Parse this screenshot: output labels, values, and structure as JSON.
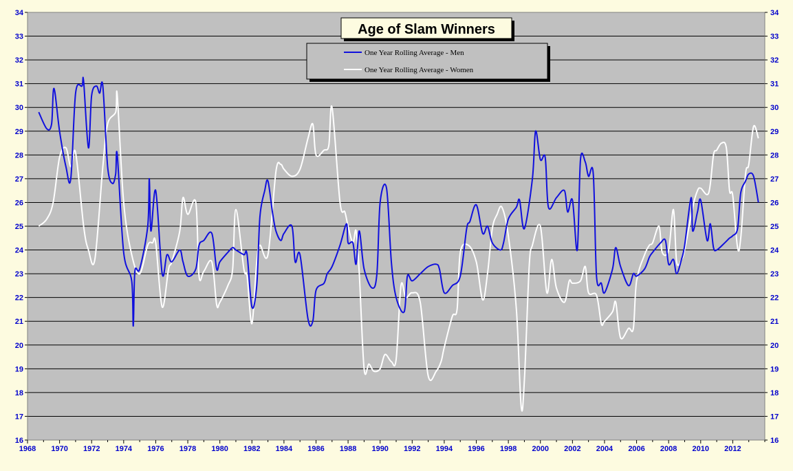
{
  "chart_data": {
    "type": "line",
    "title": "Age of Slam Winners",
    "xlim": [
      1968,
      2014
    ],
    "ylim": [
      16,
      34
    ],
    "x_ticks": [
      1968,
      1970,
      1972,
      1974,
      1976,
      1978,
      1980,
      1982,
      1984,
      1986,
      1988,
      1990,
      1992,
      1994,
      1996,
      1998,
      2000,
      2002,
      2004,
      2006,
      2008,
      2010,
      2012
    ],
    "y_ticks": [
      16,
      17,
      18,
      19,
      20,
      21,
      22,
      23,
      24,
      25,
      26,
      27,
      28,
      29,
      30,
      31,
      32,
      33,
      34
    ],
    "grid": "horizontal",
    "legend_position": "top-center",
    "colors": {
      "background": "#fdfbe0",
      "plot_area": "#c0c0c0",
      "axis_text": "#0000cc",
      "men_line": "#1010dd",
      "women_line": "#ffffff"
    },
    "series": [
      {
        "name": "One Year Rolling Average - Men",
        "x": [
          1968.7,
          1969.2,
          1969.5,
          1969.65,
          1970.0,
          1970.4,
          1970.7,
          1971.0,
          1971.4,
          1971.5,
          1971.8,
          1972.0,
          1972.3,
          1972.5,
          1972.7,
          1973.0,
          1973.3,
          1973.5,
          1973.6,
          1974.0,
          1974.5,
          1974.6,
          1974.7,
          1975.0,
          1975.5,
          1975.6,
          1975.7,
          1976.0,
          1976.4,
          1976.7,
          1977.0,
          1977.5,
          1977.7,
          1978.0,
          1978.5,
          1978.7,
          1979.0,
          1979.5,
          1979.8,
          1980.0,
          1980.5,
          1980.8,
          1981.0,
          1981.5,
          1981.7,
          1982.0,
          1982.3,
          1982.5,
          1982.8,
          1983.0,
          1983.3,
          1983.5,
          1983.8,
          1984.0,
          1984.5,
          1984.7,
          1985.0,
          1985.5,
          1985.8,
          1986.0,
          1986.5,
          1986.7,
          1987.0,
          1987.5,
          1987.9,
          1988.0,
          1988.3,
          1988.5,
          1988.7,
          1989.0,
          1989.5,
          1989.8,
          1990.0,
          1990.4,
          1990.7,
          1991.0,
          1991.5,
          1991.7,
          1992.0,
          1992.5,
          1993.0,
          1993.5,
          1993.7,
          1994.0,
          1994.5,
          1995.0,
          1995.4,
          1995.6,
          1996.0,
          1996.4,
          1996.7,
          1997.0,
          1997.5,
          1997.7,
          1998.0,
          1998.5,
          1998.7,
          1999.0,
          1999.5,
          1999.7,
          2000.0,
          2000.3,
          2000.5,
          2001.0,
          2001.5,
          2001.7,
          2002.0,
          2002.3,
          2002.5,
          2002.8,
          2003.0,
          2003.3,
          2003.5,
          2003.8,
          2004.0,
          2004.5,
          2004.7,
          2005.0,
          2005.5,
          2005.8,
          2006.0,
          2006.5,
          2006.8,
          2007.0,
          2007.5,
          2007.8,
          2008.0,
          2008.3,
          2008.5,
          2008.8,
          2009.0,
          2009.4,
          2009.5,
          2009.8,
          2010.0,
          2010.4,
          2010.6,
          2010.8,
          2011.0,
          2011.5,
          2011.8,
          2012.0,
          2012.3,
          2012.5,
          2012.8,
          2013.0,
          2013.3,
          2013.6
        ],
        "y": [
          29.8,
          29.1,
          29.3,
          30.8,
          29.0,
          27.5,
          27.0,
          30.6,
          30.9,
          31.1,
          28.3,
          30.5,
          30.9,
          30.6,
          30.9,
          27.5,
          26.8,
          27.2,
          28.0,
          23.9,
          22.7,
          20.8,
          23.1,
          23.2,
          25.0,
          27.0,
          24.8,
          26.5,
          23.0,
          23.8,
          23.5,
          24.0,
          23.5,
          22.9,
          23.2,
          24.2,
          24.4,
          24.7,
          23.2,
          23.5,
          23.9,
          24.1,
          24.0,
          23.8,
          23.8,
          21.6,
          22.5,
          25.4,
          26.5,
          26.9,
          25.5,
          24.8,
          24.4,
          24.7,
          25.0,
          23.5,
          23.8,
          21.1,
          21.0,
          22.3,
          22.6,
          23.0,
          23.3,
          24.2,
          25.1,
          24.3,
          24.3,
          23.4,
          24.8,
          23.2,
          22.4,
          23.0,
          26.0,
          26.6,
          23.5,
          22.0,
          21.4,
          22.9,
          22.7,
          23.0,
          23.3,
          23.4,
          23.2,
          22.2,
          22.5,
          22.9,
          24.9,
          25.2,
          25.9,
          24.7,
          25.0,
          24.3,
          24.0,
          24.3,
          25.3,
          25.8,
          26.1,
          24.9,
          27.0,
          29.0,
          27.8,
          27.9,
          25.8,
          26.2,
          26.5,
          25.6,
          26.1,
          24.0,
          27.8,
          27.7,
          27.1,
          27.2,
          22.9,
          22.6,
          22.2,
          23.2,
          24.1,
          23.3,
          22.5,
          23.0,
          22.9,
          23.2,
          23.7,
          23.9,
          24.3,
          24.4,
          23.4,
          23.6,
          23.0,
          23.6,
          24.2,
          26.2,
          24.8,
          25.6,
          26.1,
          24.4,
          25.1,
          24.1,
          24.0,
          24.3,
          24.5,
          24.6,
          24.9,
          26.4,
          26.9,
          27.2,
          27.1,
          26.0
        ]
      },
      {
        "name": "One Year Rolling Average - Women",
        "x": [
          1968.7,
          1969.2,
          1969.6,
          1970.0,
          1970.4,
          1970.7,
          1971.0,
          1971.5,
          1971.8,
          1972.2,
          1972.7,
          1973.0,
          1973.5,
          1973.6,
          1974.0,
          1974.5,
          1975.0,
          1975.5,
          1975.8,
          1976.0,
          1976.4,
          1976.8,
          1977.0,
          1977.5,
          1977.7,
          1978.0,
          1978.5,
          1978.7,
          1979.0,
          1979.5,
          1979.8,
          1980.0,
          1980.5,
          1980.8,
          1981.0,
          1981.5,
          1981.7,
          1982.0,
          1982.3,
          1982.5,
          1983.0,
          1983.5,
          1983.8,
          1984.0,
          1984.5,
          1985.0,
          1985.5,
          1985.8,
          1986.0,
          1986.5,
          1986.8,
          1987.0,
          1987.5,
          1987.8,
          1988.0,
          1988.3,
          1988.5,
          1988.7,
          1989.0,
          1989.3,
          1989.6,
          1990.0,
          1990.3,
          1990.7,
          1991.0,
          1991.3,
          1991.6,
          1992.0,
          1992.5,
          1993.0,
          1993.5,
          1993.8,
          1994.0,
          1994.5,
          1994.8,
          1995.0,
          1995.5,
          1996.0,
          1996.4,
          1996.7,
          1997.0,
          1997.3,
          1997.6,
          1998.0,
          1998.5,
          1998.8,
          1999.0,
          1999.3,
          1999.5,
          2000.0,
          2000.4,
          2000.7,
          2001.0,
          2001.5,
          2001.8,
          2002.0,
          2002.5,
          2002.8,
          2003.0,
          2003.5,
          2003.8,
          2004.0,
          2004.5,
          2004.7,
          2005.0,
          2005.5,
          2005.8,
          2006.0,
          2006.5,
          2006.8,
          2007.0,
          2007.4,
          2007.6,
          2008.0,
          2008.3,
          2008.5,
          2008.8,
          2009.0,
          2009.5,
          2009.8,
          2010.0,
          2010.5,
          2010.8,
          2011.0,
          2011.3,
          2011.6,
          2011.8,
          2012.0,
          2012.3,
          2012.5,
          2012.8,
          2013.0,
          2013.3,
          2013.6
        ],
        "y": [
          25.0,
          25.3,
          26.0,
          27.9,
          28.3,
          27.5,
          28.1,
          25.0,
          24.0,
          23.6,
          27.5,
          29.3,
          29.8,
          30.5,
          26.0,
          23.8,
          23.0,
          24.2,
          24.3,
          24.3,
          21.6,
          23.2,
          23.5,
          24.8,
          26.2,
          25.5,
          26.0,
          22.9,
          23.1,
          23.5,
          21.7,
          21.8,
          22.5,
          23.2,
          25.7,
          23.2,
          22.9,
          20.9,
          23.5,
          24.2,
          23.8,
          27.3,
          27.6,
          27.4,
          27.1,
          27.4,
          28.7,
          29.3,
          28.0,
          28.2,
          28.4,
          30.0,
          26.0,
          25.6,
          25.0,
          24.3,
          24.8,
          23.0,
          19.0,
          19.2,
          18.9,
          19.0,
          19.6,
          19.3,
          19.4,
          22.5,
          22.0,
          22.2,
          21.8,
          18.7,
          18.9,
          19.3,
          19.9,
          21.2,
          21.5,
          23.9,
          24.2,
          23.5,
          21.9,
          23.0,
          24.9,
          25.5,
          25.8,
          24.6,
          21.5,
          17.4,
          18.5,
          23.3,
          24.2,
          25.0,
          22.2,
          23.6,
          22.4,
          21.8,
          22.7,
          22.6,
          22.7,
          23.3,
          22.2,
          22.1,
          20.9,
          21.0,
          21.4,
          21.8,
          20.3,
          20.7,
          20.7,
          22.7,
          23.8,
          24.2,
          24.3,
          25.0,
          23.9,
          24.0,
          25.7,
          23.5,
          23.6,
          24.0,
          25.8,
          26.5,
          26.6,
          26.4,
          28.0,
          28.2,
          28.5,
          28.3,
          26.5,
          26.3,
          24.1,
          24.5,
          27.2,
          27.6,
          29.2,
          28.7
        ]
      }
    ]
  }
}
